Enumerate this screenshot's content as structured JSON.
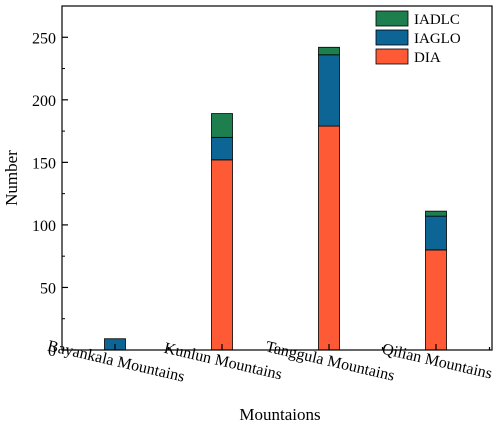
{
  "chart_data": {
    "type": "bar",
    "stacked": true,
    "xlabel": "Mountaions",
    "ylabel": "Number",
    "ylim": [
      0,
      275
    ],
    "yticks": [
      0,
      50,
      100,
      150,
      200,
      250
    ],
    "categories": [
      "Bayankala Mountains",
      "Kunlun Mountains",
      "Tanggula Mountains",
      "Qilian Mountains"
    ],
    "legend_position": "top-right",
    "series": [
      {
        "name": "DIA",
        "color": "#ff5a36",
        "values": [
          0,
          152,
          179,
          80
        ]
      },
      {
        "name": "IAGLO",
        "color": "#0d6596",
        "values": [
          9,
          18,
          57,
          27
        ]
      },
      {
        "name": "IADLC",
        "color": "#1e7f4e",
        "values": [
          0,
          19,
          6,
          4
        ]
      }
    ],
    "legend_order": [
      "IADLC",
      "IAGLO",
      "DIA"
    ]
  }
}
